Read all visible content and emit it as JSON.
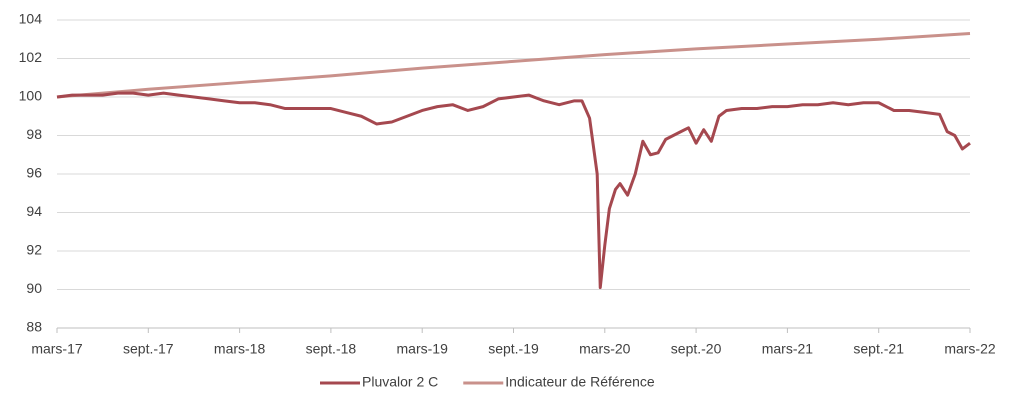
{
  "chart_data": {
    "type": "line",
    "xlim": [
      0,
      60
    ],
    "xticks": [
      {
        "value": 0,
        "label": "mars-17"
      },
      {
        "value": 6,
        "label": "sept.-17"
      },
      {
        "value": 12,
        "label": "mars-18"
      },
      {
        "value": 18,
        "label": "sept.-18"
      },
      {
        "value": 24,
        "label": "mars-19"
      },
      {
        "value": 30,
        "label": "sept.-19"
      },
      {
        "value": 36,
        "label": "mars-20"
      },
      {
        "value": 42,
        "label": "sept.-20"
      },
      {
        "value": 48,
        "label": "mars-21"
      },
      {
        "value": 54,
        "label": "sept.-21"
      },
      {
        "value": 60,
        "label": "mars-22"
      }
    ],
    "ylim": [
      88,
      104
    ],
    "yticks": [
      88,
      90,
      92,
      94,
      96,
      98,
      100,
      102,
      104
    ],
    "grid": true,
    "legend": "bottom",
    "series": [
      {
        "name": "Pluvalor 2 C",
        "color": "#a5484f",
        "x": [
          0,
          1,
          2,
          3,
          4,
          5,
          6,
          7,
          8,
          9,
          10,
          11,
          12,
          13,
          14,
          15,
          16,
          17,
          18,
          19,
          20,
          21,
          22,
          23,
          24,
          25,
          26,
          27,
          28,
          29,
          30,
          31,
          32,
          33,
          34,
          34.5,
          35,
          35.5,
          35.7,
          36,
          36.3,
          36.7,
          37,
          37.5,
          38,
          38.5,
          39,
          39.5,
          40,
          41,
          41.5,
          42,
          42.5,
          43,
          43.5,
          44,
          45,
          46,
          47,
          48,
          49,
          50,
          51,
          52,
          53,
          54,
          55,
          56,
          57,
          58,
          58.5,
          59,
          59.5,
          60
        ],
        "values": [
          100.0,
          100.1,
          100.1,
          100.1,
          100.2,
          100.2,
          100.1,
          100.2,
          100.1,
          100.0,
          99.9,
          99.8,
          99.7,
          99.7,
          99.6,
          99.4,
          99.4,
          99.4,
          99.4,
          99.2,
          99.0,
          98.6,
          98.7,
          99.0,
          99.3,
          99.5,
          99.6,
          99.3,
          99.5,
          99.9,
          100.0,
          100.1,
          99.8,
          99.6,
          99.8,
          99.8,
          98.9,
          96.0,
          90.1,
          92.3,
          94.2,
          95.2,
          95.5,
          94.9,
          96.0,
          97.7,
          97.0,
          97.1,
          97.8,
          98.2,
          98.4,
          97.6,
          98.3,
          97.7,
          99.0,
          99.3,
          99.4,
          99.4,
          99.5,
          99.5,
          99.6,
          99.6,
          99.7,
          99.6,
          99.7,
          99.7,
          99.3,
          99.3,
          99.2,
          99.1,
          98.2,
          98.0,
          97.3,
          97.6
        ]
      },
      {
        "name": "Indicateur de Référence",
        "color": "#c9918b",
        "x": [
          0,
          6,
          12,
          18,
          24,
          30,
          36,
          42,
          48,
          54,
          60
        ],
        "values": [
          100.0,
          100.4,
          100.75,
          101.1,
          101.5,
          101.85,
          102.2,
          102.5,
          102.75,
          103.0,
          103.3
        ]
      }
    ]
  }
}
